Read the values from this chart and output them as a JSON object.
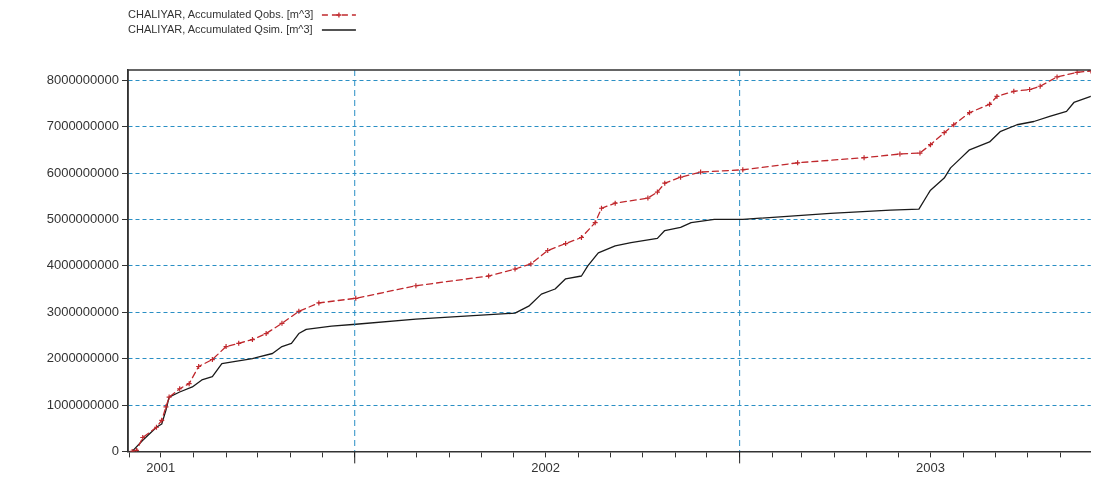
{
  "chart_data": {
    "type": "line",
    "legend": "top left",
    "grid": "y",
    "marker": "cross",
    "xlim": [
      "2001-05-31",
      "2003-11-30"
    ],
    "xticks": [
      {
        "value": "2001-06-01",
        "label": null
      },
      {
        "value": "2001-07-01",
        "label": "2001"
      },
      {
        "value": "2001-08-01",
        "label": null
      },
      {
        "value": "2001-09-01",
        "label": null
      },
      {
        "value": "2001-10-01",
        "label": null
      },
      {
        "value": "2001-11-01",
        "label": null
      },
      {
        "value": "2001-12-01",
        "label": null
      },
      {
        "value": "2002-01-01",
        "label": null
      },
      {
        "value": "2002-02-01",
        "label": null
      },
      {
        "value": "2002-03-01",
        "label": null
      },
      {
        "value": "2002-04-01",
        "label": null
      },
      {
        "value": "2002-05-01",
        "label": null
      },
      {
        "value": "2002-06-01",
        "label": null
      },
      {
        "value": "2002-07-01",
        "label": "2002"
      },
      {
        "value": "2002-08-01",
        "label": null
      },
      {
        "value": "2002-09-01",
        "label": null
      },
      {
        "value": "2002-10-01",
        "label": null
      },
      {
        "value": "2002-11-01",
        "label": null
      },
      {
        "value": "2002-12-01",
        "label": null
      },
      {
        "value": "2003-01-01",
        "label": null
      },
      {
        "value": "2003-02-01",
        "label": null
      },
      {
        "value": "2003-03-01",
        "label": null
      },
      {
        "value": "2003-04-01",
        "label": null
      },
      {
        "value": "2003-05-01",
        "label": null
      },
      {
        "value": "2003-06-01",
        "label": null
      },
      {
        "value": "2003-07-01",
        "label": "2003"
      },
      {
        "value": "2003-08-01",
        "label": null
      },
      {
        "value": "2003-09-01",
        "label": null
      },
      {
        "value": "2003-10-01",
        "label": null
      },
      {
        "value": "2003-11-01",
        "label": null
      }
    ],
    "ylim": [
      0,
      8220000000
    ],
    "yticks": [
      0,
      1000000000,
      2000000000,
      3000000000,
      4000000000,
      5000000000,
      6000000000,
      7000000000,
      8000000000
    ],
    "ref_lines": [
      {
        "axis": "x",
        "value": "2002-01-01",
        "color": "#2a8fc4",
        "line_style": "dashed"
      },
      {
        "axis": "x",
        "value": "2003-01-01",
        "color": "#2a8fc4",
        "line_style": "dashed"
      }
    ],
    "series": [
      {
        "name": "CHALIYAR, Accumulated Qobs. [m^3]",
        "color": "#c0282d",
        "line_style": "dashed",
        "x": [
          "2001-06-04",
          "2001-06-08",
          "2001-06-14",
          "2001-06-27",
          "2001-07-02",
          "2001-07-06",
          "2001-07-09",
          "2001-07-19",
          "2001-07-28",
          "2001-08-06",
          "2001-08-19",
          "2001-09-01",
          "2001-09-13",
          "2001-09-26",
          "2001-10-09",
          "2001-10-24",
          "2001-11-09",
          "2001-11-28",
          "2002-01-02",
          "2002-02-28",
          "2002-05-08",
          "2002-06-02",
          "2002-06-17",
          "2002-07-03",
          "2002-07-20",
          "2002-08-04",
          "2002-08-17",
          "2002-08-23",
          "2002-09-05",
          "2002-10-06",
          "2002-10-15",
          "2002-10-22",
          "2002-11-06",
          "2002-11-25",
          "2003-01-04",
          "2003-02-25",
          "2003-04-29",
          "2003-06-02",
          "2003-06-21",
          "2003-07-01",
          "2003-07-14",
          "2003-07-23",
          "2003-08-07",
          "2003-08-26",
          "2003-09-02",
          "2003-09-18",
          "2003-10-03",
          "2003-10-13",
          "2003-10-29",
          "2003-11-17",
          "2003-11-30"
        ],
        "values": [
          0,
          20000000,
          300000000,
          520000000,
          670000000,
          960000000,
          1170000000,
          1350000000,
          1460000000,
          1830000000,
          1980000000,
          2260000000,
          2330000000,
          2410000000,
          2540000000,
          2760000000,
          3020000000,
          3200000000,
          3300000000,
          3570000000,
          3780000000,
          3930000000,
          4040000000,
          4330000000,
          4480000000,
          4610000000,
          4930000000,
          5240000000,
          5350000000,
          5460000000,
          5590000000,
          5780000000,
          5910000000,
          6020000000,
          6070000000,
          6220000000,
          6330000000,
          6410000000,
          6430000000,
          6610000000,
          6870000000,
          7040000000,
          7300000000,
          7480000000,
          7650000000,
          7760000000,
          7800000000,
          7870000000,
          8070000000,
          8170000000,
          8200000000
        ]
      },
      {
        "name": "CHALIYAR, Accumulated Qsim. [m^3]",
        "color": "#1a1a1a",
        "line_style": "solid",
        "marker": "none",
        "x": [
          "2001-06-04",
          "2001-06-14",
          "2001-06-27",
          "2001-07-02",
          "2001-07-06",
          "2001-07-09",
          "2001-07-19",
          "2001-07-31",
          "2001-08-09",
          "2001-08-19",
          "2001-08-28",
          "2001-09-07",
          "2001-09-26",
          "2001-10-15",
          "2001-10-24",
          "2001-11-02",
          "2001-11-09",
          "2001-11-16",
          "2001-12-10",
          "2002-01-02",
          "2002-02-28",
          "2002-06-02",
          "2002-06-15",
          "2002-06-27",
          "2002-07-10",
          "2002-07-20",
          "2002-08-04",
          "2002-08-10",
          "2002-08-20",
          "2002-09-05",
          "2002-09-20",
          "2002-10-15",
          "2002-10-22",
          "2002-11-06",
          "2002-11-16",
          "2002-12-08",
          "2003-01-04",
          "2003-03-28",
          "2003-05-24",
          "2003-06-20",
          "2003-06-28",
          "2003-07-01",
          "2003-07-14",
          "2003-07-20",
          "2003-07-26",
          "2003-08-07",
          "2003-08-26",
          "2003-09-05",
          "2003-09-21",
          "2003-10-07",
          "2003-10-22",
          "2003-11-07",
          "2003-11-14",
          "2003-11-30"
        ],
        "values": [
          0,
          240000000,
          520000000,
          590000000,
          890000000,
          1170000000,
          1280000000,
          1390000000,
          1540000000,
          1610000000,
          1890000000,
          1930000000,
          2000000000,
          2110000000,
          2260000000,
          2330000000,
          2540000000,
          2630000000,
          2700000000,
          2740000000,
          2850000000,
          2980000000,
          3130000000,
          3390000000,
          3500000000,
          3720000000,
          3780000000,
          4000000000,
          4280000000,
          4430000000,
          4500000000,
          4590000000,
          4760000000,
          4830000000,
          4930000000,
          5000000000,
          5000000000,
          5130000000,
          5200000000,
          5220000000,
          5520000000,
          5630000000,
          5890000000,
          6110000000,
          6240000000,
          6500000000,
          6670000000,
          6890000000,
          7040000000,
          7110000000,
          7220000000,
          7330000000,
          7520000000,
          7650000000
        ]
      }
    ]
  }
}
